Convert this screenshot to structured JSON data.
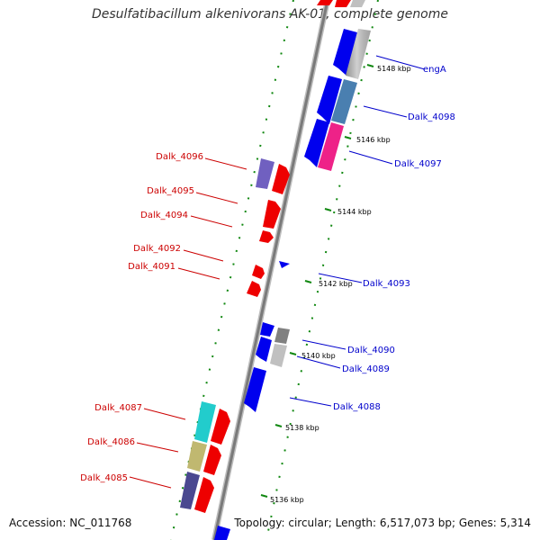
{
  "title": "Desulfatibacillum alkenivorans AK-01, complete genome",
  "accession": "Accession: NC_011768",
  "topology": "Topology: circular; Length: 6,517,073 bp; Genes: 5,314",
  "colors": {
    "backbone": "#8a8a8a",
    "forward_gene": "#ee0000",
    "reverse_gene": "#0000ee",
    "forward_label": "#cc0000",
    "reverse_label": "#0000cc",
    "tick": "#118811",
    "steelblue": "#4a7fb0",
    "magenta": "#ee2288",
    "lightgray": "#c0c0c0",
    "cyan": "#22cccc",
    "khaki": "#c0b870",
    "slateblue": "#7060c0",
    "darkslate": "#4a4890",
    "gray": "#909090"
  },
  "scale_labels": [
    "5136 kbp",
    "5138 kbp",
    "5140 kbp",
    "5142 kbp",
    "5144 kbp",
    "5146 kbp",
    "5148 kbp"
  ],
  "genes_left": [
    "Dalk_4096",
    "Dalk_4095",
    "Dalk_4094",
    "Dalk_4092",
    "Dalk_4091",
    "Dalk_4087",
    "Dalk_4086",
    "Dalk_4085"
  ],
  "genes_right": [
    "engA",
    "Dalk_4098",
    "Dalk_4097",
    "Dalk_4093",
    "Dalk_4090",
    "Dalk_4089",
    "Dalk_4088"
  ]
}
